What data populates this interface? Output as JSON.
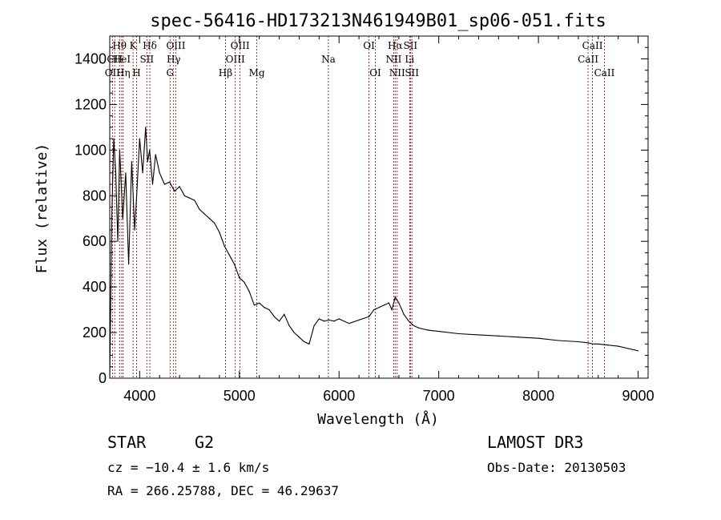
{
  "chart_data": {
    "type": "line",
    "title": "spec-56416-HD173213N461949B01_sp06-051.fits",
    "xlabel": "Wavelength (Å)",
    "ylabel": "Flux (relative)",
    "xlim": [
      3700,
      9100
    ],
    "ylim": [
      0,
      1500
    ],
    "xticks": [
      4000,
      5000,
      6000,
      7000,
      8000,
      9000
    ],
    "yticks": [
      0,
      200,
      400,
      600,
      800,
      1000,
      1200,
      1400
    ],
    "grid": false,
    "series": [
      {
        "name": "flux",
        "x": [
          3700,
          3720,
          3740,
          3760,
          3780,
          3800,
          3830,
          3860,
          3890,
          3920,
          3950,
          3970,
          4000,
          4030,
          4060,
          4080,
          4100,
          4130,
          4160,
          4200,
          4250,
          4300,
          4350,
          4400,
          4450,
          4500,
          4550,
          4600,
          4650,
          4700,
          4750,
          4800,
          4850,
          4900,
          4950,
          5000,
          5050,
          5100,
          5150,
          5200,
          5250,
          5300,
          5350,
          5400,
          5450,
          5500,
          5550,
          5600,
          5650,
          5700,
          5750,
          5800,
          5850,
          5900,
          5950,
          6000,
          6100,
          6200,
          6300,
          6350,
          6400,
          6450,
          6500,
          6530,
          6563,
          6600,
          6650,
          6700,
          6750,
          6800,
          6900,
          7000,
          7200,
          7400,
          7600,
          7800,
          8000,
          8200,
          8400,
          8500,
          8542,
          8600,
          8700,
          8800,
          8900,
          9000
        ],
        "y": [
          0,
          700,
          1050,
          900,
          600,
          1000,
          700,
          900,
          500,
          950,
          650,
          800,
          1050,
          900,
          1100,
          950,
          1000,
          850,
          980,
          900,
          850,
          860,
          820,
          840,
          800,
          790,
          780,
          740,
          720,
          700,
          680,
          640,
          580,
          540,
          500,
          440,
          420,
          380,
          320,
          330,
          310,
          300,
          270,
          250,
          280,
          230,
          200,
          180,
          160,
          150,
          230,
          260,
          250,
          255,
          250,
          260,
          240,
          255,
          270,
          300,
          310,
          320,
          330,
          300,
          355,
          330,
          280,
          250,
          230,
          220,
          210,
          205,
          195,
          190,
          185,
          180,
          175,
          165,
          160,
          155,
          150,
          150,
          145,
          140,
          130,
          120
        ]
      }
    ],
    "line_annotations": [
      {
        "label": "Hθ",
        "x": 3798,
        "tier": 0
      },
      {
        "label": "CH",
        "x": 3750,
        "tier": 1
      },
      {
        "label": "OII",
        "x": 3727,
        "tier": 2
      },
      {
        "label": "HeI",
        "x": 3820,
        "tier": 1
      },
      {
        "label": "Hη",
        "x": 3835,
        "tier": 2
      },
      {
        "label": "K",
        "x": 3934,
        "tier": 0
      },
      {
        "label": "SII",
        "x": 4072,
        "tier": 1
      },
      {
        "label": "H",
        "x": 3969,
        "tier": 2
      },
      {
        "label": "Hδ",
        "x": 4102,
        "tier": 0
      },
      {
        "label": "OIII",
        "x": 4363,
        "tier": 0
      },
      {
        "label": "Hγ",
        "x": 4341,
        "tier": 1
      },
      {
        "label": "G",
        "x": 4305,
        "tier": 2
      },
      {
        "label": "OIII",
        "x": 5007,
        "tier": 0
      },
      {
        "label": "OIII",
        "x": 4959,
        "tier": 1
      },
      {
        "label": "Hβ",
        "x": 4861,
        "tier": 2
      },
      {
        "label": "Mg",
        "x": 5175,
        "tier": 2
      },
      {
        "label": "Na",
        "x": 5893,
        "tier": 1
      },
      {
        "label": "OI",
        "x": 6300,
        "tier": 0
      },
      {
        "label": "OI",
        "x": 6364,
        "tier": 2
      },
      {
        "label": "Hα",
        "x": 6563,
        "tier": 0
      },
      {
        "label": "SII",
        "x": 6716,
        "tier": 0
      },
      {
        "label": "NII",
        "x": 6548,
        "tier": 1
      },
      {
        "label": "Li",
        "x": 6708,
        "tier": 1
      },
      {
        "label": "NII",
        "x": 6583,
        "tier": 2
      },
      {
        "label": "SII",
        "x": 6731,
        "tier": 2
      },
      {
        "label": "CaII",
        "x": 8542,
        "tier": 0
      },
      {
        "label": "CaII",
        "x": 8498,
        "tier": 1
      },
      {
        "label": "CaII",
        "x": 8662,
        "tier": 2
      }
    ],
    "line_color": "#8b0000"
  },
  "info": {
    "class_label": "STAR",
    "subclass": "G2",
    "survey": "LAMOST DR3",
    "cz": "cz = −10.4 ± 1.6 km/s",
    "obs_date": "Obs-Date: 20130503",
    "coords": "RA = 266.25788, DEC =  46.29637"
  }
}
